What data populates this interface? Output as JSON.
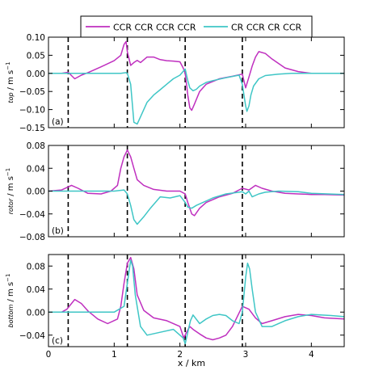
{
  "legend": {
    "entries": [
      {
        "label": "CCR CCR CCR CCR",
        "color": "#bf2fbf"
      },
      {
        "label": "CR CCR CR CCR",
        "color": "#3fc6c6"
      }
    ]
  },
  "xlabel": "x / km",
  "panel_ylabel_unit": "/ m s",
  "panel_ylabel_exp": "−1",
  "chart_data": [
    {
      "type": "line",
      "panel_label": "(a)",
      "ylabel_sub": "top",
      "ylim": [
        -0.15,
        0.1
      ],
      "yticks": [
        0.1,
        0.05,
        0.0,
        -0.05,
        -0.1,
        -0.15
      ],
      "ytick_labels": [
        "0.10",
        "0.05",
        "0.00",
        "−0.05",
        "−0.10",
        "−0.15"
      ],
      "xlim": [
        0,
        4.5
      ],
      "vlines": [
        0.3,
        1.2,
        2.08,
        2.95
      ],
      "series": [
        {
          "name": "CCR CCR CCR CCR",
          "color": "#bf2fbf",
          "x": [
            0,
            0.2,
            0.3,
            0.4,
            0.5,
            0.6,
            0.8,
            1.0,
            1.1,
            1.15,
            1.18,
            1.2,
            1.25,
            1.3,
            1.35,
            1.4,
            1.5,
            1.6,
            1.7,
            1.8,
            1.9,
            2.0,
            2.05,
            2.08,
            2.12,
            2.15,
            2.18,
            2.22,
            2.3,
            2.4,
            2.6,
            2.8,
            2.95,
            3.0,
            3.05,
            3.1,
            3.15,
            3.2,
            3.3,
            3.4,
            3.6,
            3.8,
            4.0,
            4.2,
            4.5
          ],
          "y": [
            0,
            0,
            0.003,
            -0.015,
            -0.005,
            0.002,
            0.018,
            0.035,
            0.05,
            0.08,
            0.088,
            0.06,
            0.022,
            0.03,
            0.036,
            0.03,
            0.045,
            0.045,
            0.038,
            0.035,
            0.034,
            0.032,
            0.015,
            0.0,
            -0.06,
            -0.095,
            -0.102,
            -0.085,
            -0.05,
            -0.03,
            -0.015,
            -0.008,
            -0.002,
            -0.04,
            -0.01,
            0.02,
            0.045,
            0.06,
            0.055,
            0.04,
            0.015,
            0.005,
            0.0,
            0.0,
            0.0
          ]
        },
        {
          "name": "CR CCR CR CCR",
          "color": "#3fc6c6",
          "x": [
            0,
            0.3,
            0.6,
            0.9,
            1.1,
            1.18,
            1.2,
            1.25,
            1.3,
            1.35,
            1.4,
            1.5,
            1.6,
            1.7,
            1.8,
            1.9,
            2.0,
            2.08,
            2.12,
            2.15,
            2.2,
            2.25,
            2.3,
            2.4,
            2.5,
            2.7,
            2.9,
            2.95,
            3.0,
            3.02,
            3.05,
            3.08,
            3.12,
            3.2,
            3.3,
            3.5,
            3.7,
            4.0,
            4.5
          ],
          "y": [
            0,
            0,
            0,
            0,
            0.0,
            0.002,
            0.0,
            -0.03,
            -0.135,
            -0.14,
            -0.12,
            -0.08,
            -0.06,
            -0.045,
            -0.03,
            -0.015,
            -0.005,
            0.012,
            -0.02,
            -0.04,
            -0.048,
            -0.044,
            -0.035,
            -0.025,
            -0.02,
            -0.012,
            -0.005,
            -0.03,
            -0.09,
            -0.105,
            -0.09,
            -0.06,
            -0.035,
            -0.015,
            -0.006,
            -0.002,
            0.0,
            0.0,
            0.0
          ]
        }
      ]
    },
    {
      "type": "line",
      "panel_label": "(b)",
      "ylabel_sub": "rotor",
      "ylim": [
        -0.08,
        0.08
      ],
      "yticks": [
        0.08,
        0.04,
        0.0,
        -0.04,
        -0.08
      ],
      "ytick_labels": [
        "0.08",
        "0.04",
        "0.00",
        "−0.04",
        "−0.08"
      ],
      "xlim": [
        0,
        4.5
      ],
      "vlines": [
        0.3,
        1.2,
        2.08,
        2.95
      ],
      "series": [
        {
          "name": "CCR CCR CCR CCR",
          "color": "#bf2fbf",
          "x": [
            0,
            0.2,
            0.35,
            0.45,
            0.6,
            0.8,
            0.95,
            1.05,
            1.1,
            1.15,
            1.2,
            1.25,
            1.3,
            1.35,
            1.45,
            1.6,
            1.8,
            2.0,
            2.08,
            2.12,
            2.18,
            2.22,
            2.3,
            2.4,
            2.6,
            2.8,
            2.95,
            3.05,
            3.15,
            3.25,
            3.4,
            3.6,
            3.8,
            4.0,
            4.2,
            4.5
          ],
          "y": [
            0,
            0.002,
            0.01,
            0.005,
            -0.004,
            -0.005,
            0.0,
            0.01,
            0.04,
            0.06,
            0.072,
            0.06,
            0.04,
            0.02,
            0.01,
            0.003,
            0.0,
            0.0,
            -0.005,
            -0.02,
            -0.04,
            -0.043,
            -0.03,
            -0.02,
            -0.01,
            -0.004,
            0.005,
            0.002,
            0.01,
            0.005,
            0.0,
            -0.004,
            -0.005,
            -0.006,
            -0.006,
            -0.007
          ]
        },
        {
          "name": "CR CCR CR CCR",
          "color": "#3fc6c6",
          "x": [
            0,
            0.5,
            1.0,
            1.15,
            1.2,
            1.25,
            1.3,
            1.35,
            1.45,
            1.55,
            1.7,
            1.85,
            2.0,
            2.08,
            2.12,
            2.18,
            2.25,
            2.35,
            2.5,
            2.7,
            2.9,
            2.95,
            3.0,
            3.05,
            3.1,
            3.2,
            3.3,
            3.5,
            3.8,
            4.0,
            4.5
          ],
          "y": [
            0,
            0,
            0.0,
            0.002,
            -0.005,
            -0.025,
            -0.05,
            -0.058,
            -0.045,
            -0.03,
            -0.01,
            -0.012,
            -0.008,
            -0.02,
            -0.028,
            -0.03,
            -0.025,
            -0.02,
            -0.012,
            -0.005,
            -0.002,
            -0.001,
            -0.005,
            0.0,
            -0.01,
            -0.005,
            -0.002,
            0.0,
            -0.001,
            -0.004,
            -0.006
          ]
        }
      ]
    },
    {
      "type": "line",
      "panel_label": "(c)",
      "ylabel_sub": "bottom",
      "ylim": [
        -0.06,
        0.1
      ],
      "yticks": [
        0.08,
        0.04,
        0.0,
        -0.04
      ],
      "ytick_labels": [
        "0.08",
        "0.04",
        "0.00",
        "−0.04"
      ],
      "xlim": [
        0,
        4.5
      ],
      "xticks": [
        0,
        1,
        2,
        3,
        4
      ],
      "xtick_labels": [
        "0",
        "1",
        "2",
        "3",
        "4"
      ],
      "vlines": [
        0.3,
        1.2,
        2.08,
        2.95
      ],
      "series": [
        {
          "name": "CCR CCR CCR CCR",
          "color": "#bf2fbf",
          "x": [
            0,
            0.2,
            0.28,
            0.4,
            0.5,
            0.6,
            0.75,
            0.9,
            1.05,
            1.1,
            1.15,
            1.2,
            1.25,
            1.3,
            1.35,
            1.45,
            1.6,
            1.8,
            2.0,
            2.06,
            2.1,
            2.15,
            2.2,
            2.3,
            2.4,
            2.5,
            2.6,
            2.7,
            2.8,
            2.95,
            3.05,
            3.15,
            3.25,
            3.4,
            3.6,
            3.8,
            4.0,
            4.2,
            4.5
          ],
          "y": [
            0,
            0.0,
            0.005,
            0.022,
            0.015,
            0.002,
            -0.012,
            -0.02,
            -0.012,
            0.01,
            0.05,
            0.085,
            0.095,
            0.075,
            0.03,
            0.003,
            -0.01,
            -0.015,
            -0.025,
            -0.045,
            -0.035,
            -0.025,
            -0.03,
            -0.038,
            -0.045,
            -0.048,
            -0.045,
            -0.04,
            -0.025,
            0.01,
            0.005,
            -0.01,
            -0.02,
            -0.015,
            -0.008,
            -0.004,
            -0.006,
            -0.01,
            -0.012
          ]
        },
        {
          "name": "CR CCR CR CCR",
          "color": "#3fc6c6",
          "x": [
            0,
            0.5,
            1.0,
            1.15,
            1.2,
            1.25,
            1.28,
            1.32,
            1.4,
            1.5,
            1.7,
            1.9,
            2.05,
            2.08,
            2.12,
            2.16,
            2.2,
            2.3,
            2.4,
            2.5,
            2.6,
            2.7,
            2.8,
            2.9,
            2.95,
            3.0,
            3.03,
            3.06,
            3.1,
            3.15,
            3.25,
            3.4,
            3.6,
            3.8,
            4.0,
            4.3,
            4.5
          ],
          "y": [
            0,
            0,
            0.0,
            0.01,
            0.05,
            0.09,
            0.08,
            0.03,
            -0.025,
            -0.04,
            -0.035,
            -0.03,
            -0.045,
            -0.055,
            -0.035,
            -0.015,
            -0.005,
            -0.02,
            -0.012,
            -0.006,
            -0.004,
            -0.006,
            -0.015,
            -0.02,
            0.0,
            0.06,
            0.085,
            0.075,
            0.04,
            0.0,
            -0.025,
            -0.025,
            -0.015,
            -0.008,
            -0.004,
            -0.006,
            -0.008
          ]
        }
      ]
    }
  ]
}
